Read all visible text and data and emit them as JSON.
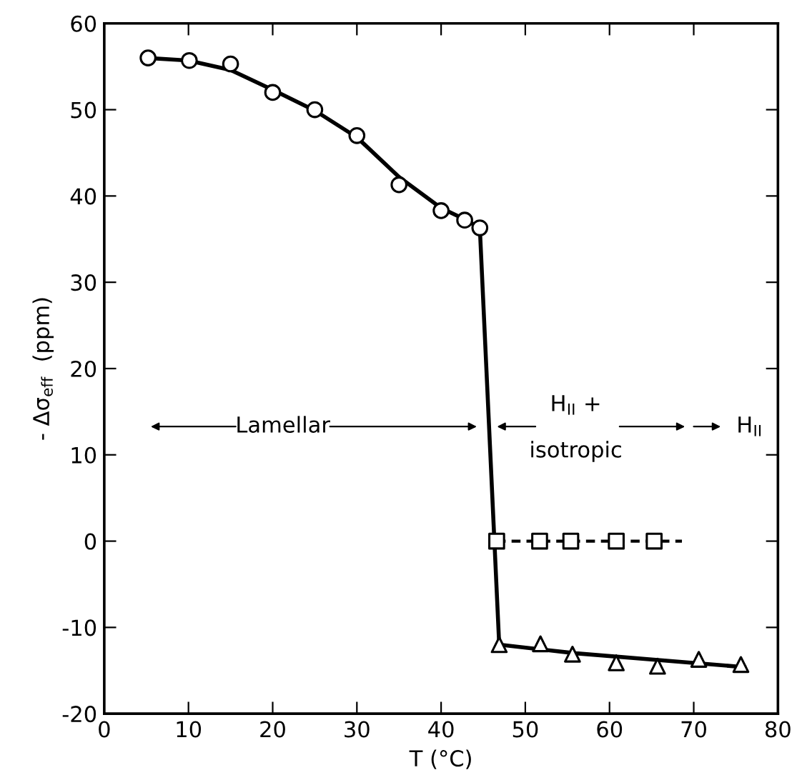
{
  "chart_data": {
    "type": "scatter",
    "xlabel": "T (°C)",
    "ylabel": "- Δσ$_{eff}$  (ppm)",
    "xlim": [
      0,
      80
    ],
    "xticks": [
      0,
      10,
      20,
      30,
      40,
      50,
      60,
      70,
      80
    ],
    "ylim": [
      -20,
      60
    ],
    "yticks": [
      {
        "value": -20,
        "label": "-20"
      },
      {
        "value": -10,
        "label": "-10"
      },
      0,
      10,
      20,
      30,
      40,
      50,
      60
    ],
    "grid": false,
    "legend": false,
    "series": [
      {
        "type": "line",
        "color": "#000000",
        "line_style": "solid",
        "marker": "none",
        "x": [
          5,
          10,
          15,
          20,
          25,
          30,
          35,
          40,
          42.8,
          44.6,
          46.9,
          56,
          66,
          76
        ],
        "values": [
          56,
          55.7,
          54.6,
          52.3,
          49.9,
          46.8,
          42.2,
          38.6,
          37.3,
          36.3,
          -12,
          -13,
          -13.8,
          -14.6
        ]
      },
      {
        "type": "line",
        "color": "#000000",
        "line_style": "dashed",
        "marker": "none",
        "x": [
          46.6,
          68.6
        ],
        "values": [
          0,
          0
        ]
      },
      {
        "color": "#000000",
        "marker": "circle",
        "x": [
          5.2,
          10.1,
          15,
          20,
          25,
          30,
          35,
          40,
          42.8,
          44.6
        ],
        "values": [
          56,
          55.7,
          55.3,
          52,
          50,
          47,
          41.3,
          38.3,
          37.2,
          36.3
        ]
      },
      {
        "color": "#000000",
        "marker": "square",
        "x": [
          46.6,
          51.7,
          55.4,
          60.8,
          65.3
        ],
        "values": [
          0,
          0,
          0,
          0,
          0
        ]
      },
      {
        "color": "#000000",
        "marker": "triangle",
        "x": [
          46.9,
          51.8,
          55.6,
          60.8,
          65.7,
          70.6,
          75.6
        ],
        "values": [
          -12,
          -11.9,
          -13.1,
          -14.1,
          -14.5,
          -13.7,
          -14.3
        ]
      }
    ],
    "annotations": [
      "Lamellar",
      "H$_{II}$ +",
      "isotropic",
      "H$_{II}$"
    ]
  }
}
